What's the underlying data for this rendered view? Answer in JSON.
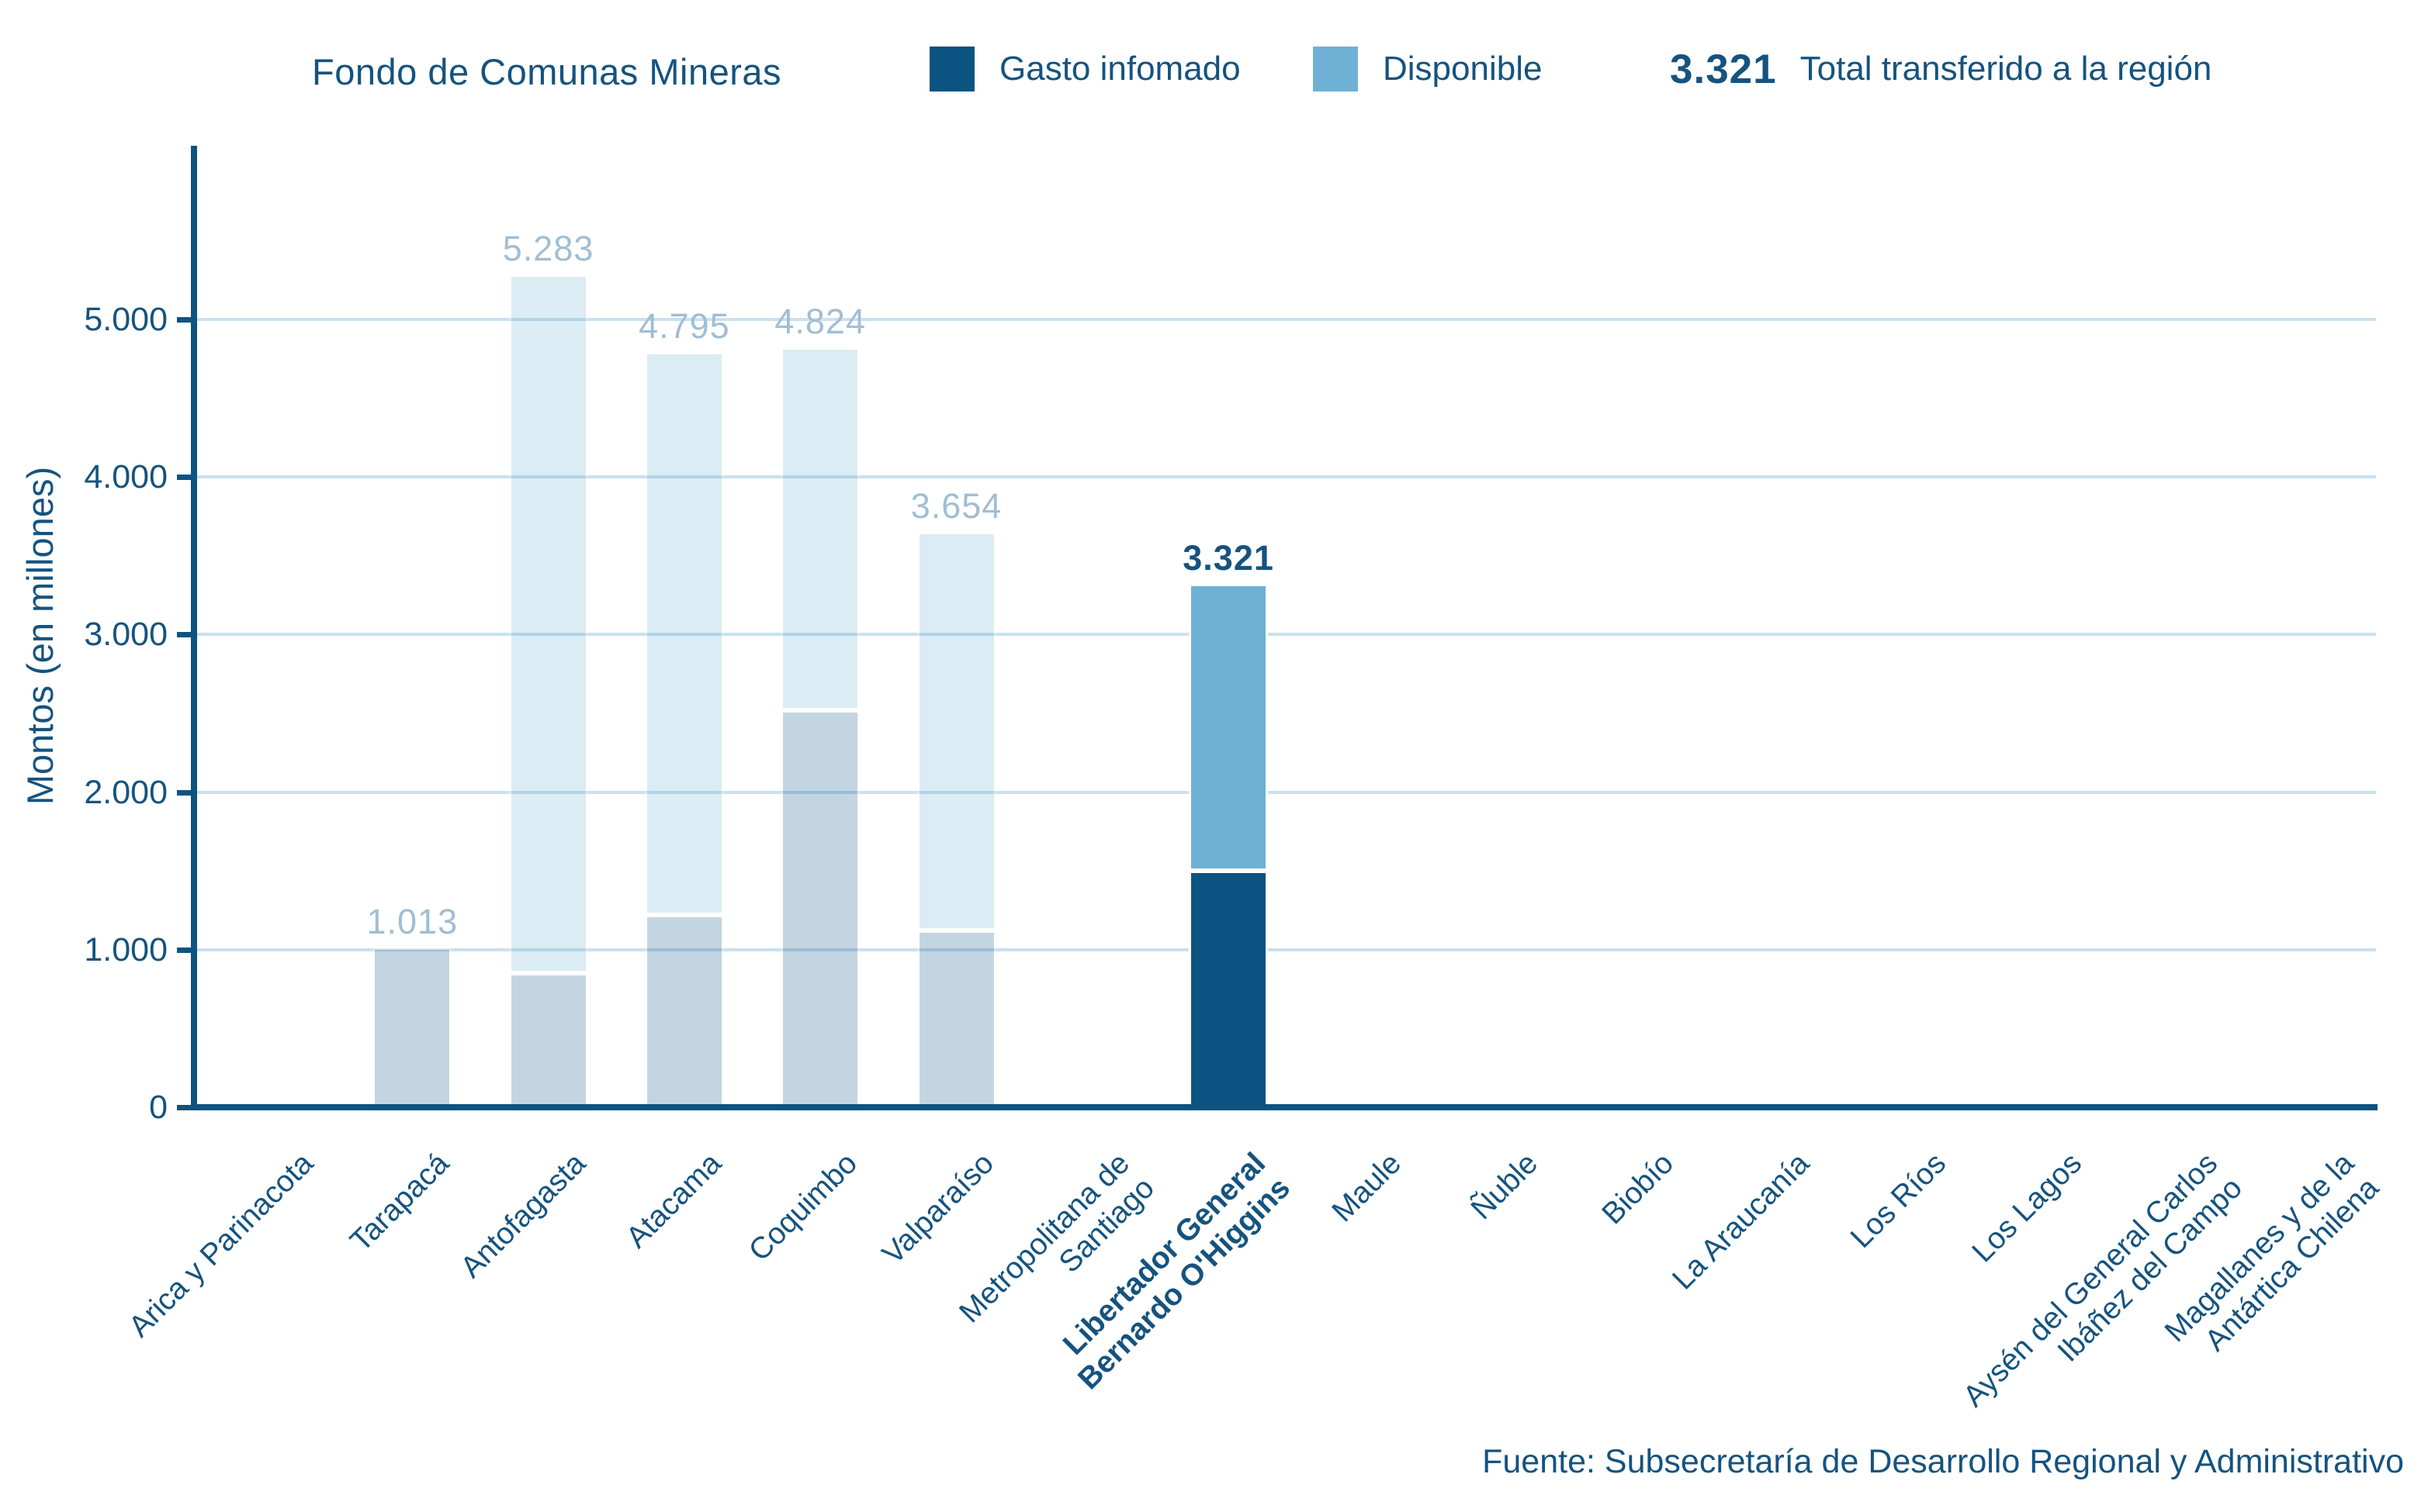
{
  "header": {
    "title": "Fondo de Comunas Mineras",
    "legend": [
      {
        "label": "Gasto infomado",
        "color": "#0B5380"
      },
      {
        "label": "Disponible",
        "color": "#6FB1D5"
      }
    ],
    "total": {
      "value": "3.321",
      "label": "Total transferido a la región"
    }
  },
  "chart_data": {
    "type": "bar",
    "stacked": true,
    "title": "Fondo de Comunas Mineras",
    "xlabel": "",
    "ylabel": "Montos (en millones)",
    "ylim": [
      0,
      5900
    ],
    "grid": "horizontal",
    "legend_position": "top",
    "series_names": [
      "Gasto infomado",
      "Disponible"
    ],
    "yticks": [
      {
        "value": 0,
        "label": "0"
      },
      {
        "value": 1000,
        "label": "1.000"
      },
      {
        "value": 2000,
        "label": "2.000"
      },
      {
        "value": 3000,
        "label": "3.000"
      },
      {
        "value": 4000,
        "label": "4.000"
      },
      {
        "value": 5000,
        "label": "5.000"
      }
    ],
    "categories": [
      {
        "name": "Arica y Parinacota",
        "gasto": 0,
        "disponible": 0,
        "total_label": null,
        "highlight": false
      },
      {
        "name": "Tarapacá",
        "gasto": 1013,
        "disponible": 0,
        "total_label": "1.013",
        "highlight": false
      },
      {
        "name": "Antofagasta",
        "gasto": 850,
        "disponible": 4433,
        "total_label": "5.283",
        "highlight": false
      },
      {
        "name": "Atacama",
        "gasto": 1220,
        "disponible": 3575,
        "total_label": "4.795",
        "highlight": false
      },
      {
        "name": "Coquimbo",
        "gasto": 2520,
        "disponible": 2304,
        "total_label": "4.824",
        "highlight": false
      },
      {
        "name": "Valparaíso",
        "gasto": 1120,
        "disponible": 2534,
        "total_label": "3.654",
        "highlight": false
      },
      {
        "name": "Metropolitana de\nSantiago",
        "gasto": 0,
        "disponible": 0,
        "total_label": null,
        "highlight": false
      },
      {
        "name": "Libertador General\nBernardo O'Higgins",
        "gasto": 1500,
        "disponible": 1821,
        "total_label": "3.321",
        "highlight": true
      },
      {
        "name": "Maule",
        "gasto": 0,
        "disponible": 0,
        "total_label": null,
        "highlight": false
      },
      {
        "name": "Ñuble",
        "gasto": 0,
        "disponible": 0,
        "total_label": null,
        "highlight": false
      },
      {
        "name": "Biobío",
        "gasto": 0,
        "disponible": 0,
        "total_label": null,
        "highlight": false
      },
      {
        "name": "La Araucanía",
        "gasto": 0,
        "disponible": 0,
        "total_label": null,
        "highlight": false
      },
      {
        "name": "Los Ríos",
        "gasto": 0,
        "disponible": 0,
        "total_label": null,
        "highlight": false
      },
      {
        "name": "Los Lagos",
        "gasto": 0,
        "disponible": 0,
        "total_label": null,
        "highlight": false
      },
      {
        "name": "Aysén del General Carlos\nIbáñez del Campo",
        "gasto": 0,
        "disponible": 0,
        "total_label": null,
        "highlight": false
      },
      {
        "name": "Magallanes y de la\nAntártica Chilena",
        "gasto": 0,
        "disponible": 0,
        "total_label": null,
        "highlight": false
      }
    ],
    "colors": {
      "gasto": "#0B5380",
      "disponible": "#6FB1D5",
      "inactive_opacity": 0.24,
      "grid": "#C9E0EE",
      "axis": "#0E5380",
      "text": "#15537F",
      "muted_value_label": "#A0BED4"
    }
  },
  "footer": {
    "source": "Fuente: Subsecretaría de Desarrollo Regional y Administrativo"
  }
}
